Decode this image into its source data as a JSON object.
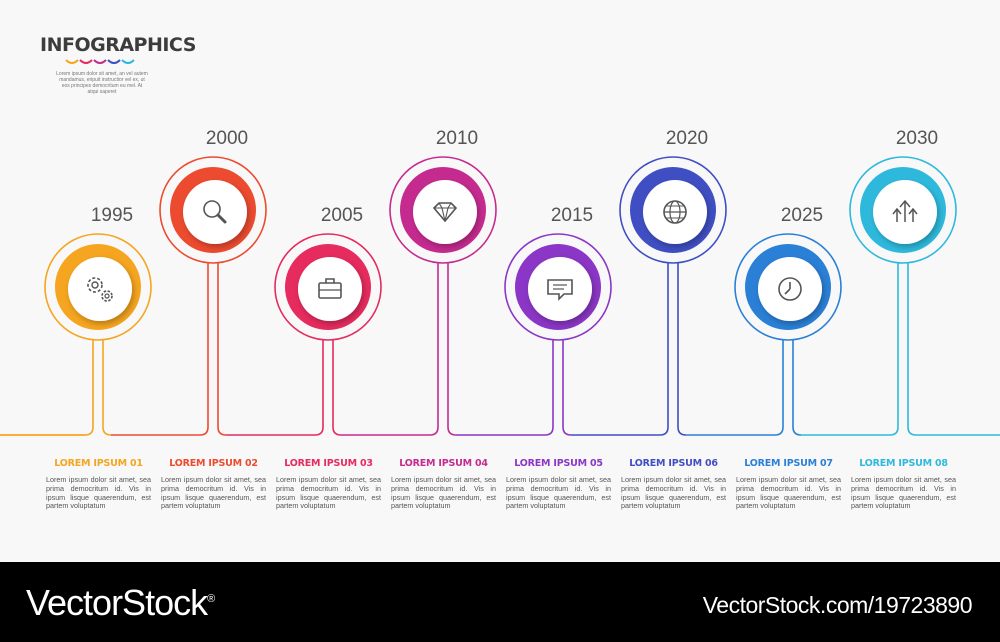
{
  "brand": {
    "title": "INFOGRAPHICS",
    "subtitle": "Lorem ipsum dolor sit amet, an vel autem mandamus, eripuit instructior vel ex, ut eos principes democritum eu mel. At atqui saperet"
  },
  "steps": [
    {
      "year": "1995",
      "title": "LOREM IPSUM 01",
      "body": "Lorem ipsum dolor sit amet, sea prima democritum id. Vis in ipsum lisque quaerendum, est partem voluptatum",
      "color": "#f5a51f",
      "icon": "gears-icon"
    },
    {
      "year": "2000",
      "title": "LOREM IPSUM 02",
      "body": "Lorem ipsum dolor sit amet, sea prima democritum id. Vis in ipsum lisque quaerendum, est partem voluptatum",
      "color": "#ec4b2f",
      "icon": "magnifier-icon"
    },
    {
      "year": "2005",
      "title": "LOREM IPSUM 03",
      "body": "Lorem ipsum dolor sit amet, sea prima democritum id. Vis in ipsum lisque quaerendum, est partem voluptatum",
      "color": "#e62b5e",
      "icon": "briefcase-icon"
    },
    {
      "year": "2010",
      "title": "LOREM IPSUM 04",
      "body": "Lorem ipsum dolor sit amet, sea prima democritum id. Vis in ipsum lisque quaerendum, est partem voluptatum",
      "color": "#c52b8f",
      "icon": "diamond-icon"
    },
    {
      "year": "2015",
      "title": "LOREM IPSUM 05",
      "body": "Lorem ipsum dolor sit amet, sea prima democritum id. Vis in ipsum lisque quaerendum, est partem voluptatum",
      "color": "#8b36c6",
      "icon": "chat-bubble-icon"
    },
    {
      "year": "2020",
      "title": "LOREM IPSUM 06",
      "body": "Lorem ipsum dolor sit amet, sea prima democritum id. Vis in ipsum lisque quaerendum, est partem voluptatum",
      "color": "#3f4fc3",
      "icon": "globe-icon"
    },
    {
      "year": "2025",
      "title": "LOREM IPSUM 07",
      "body": "Lorem ipsum dolor sit amet, sea prima democritum id. Vis in ipsum lisque quaerendum, est partem voluptatum",
      "color": "#2a80d6",
      "icon": "clock-icon"
    },
    {
      "year": "2030",
      "title": "LOREM IPSUM 08",
      "body": "Lorem ipsum dolor sit amet, sea prima democritum id. Vis in ipsum lisque quaerendum, est partem voluptatum",
      "color": "#2eb9dc",
      "icon": "growth-arrows-icon"
    }
  ],
  "footer": {
    "brand": "VectorStock",
    "brand_mark": "®",
    "url": "VectorStock.com/19723890"
  }
}
